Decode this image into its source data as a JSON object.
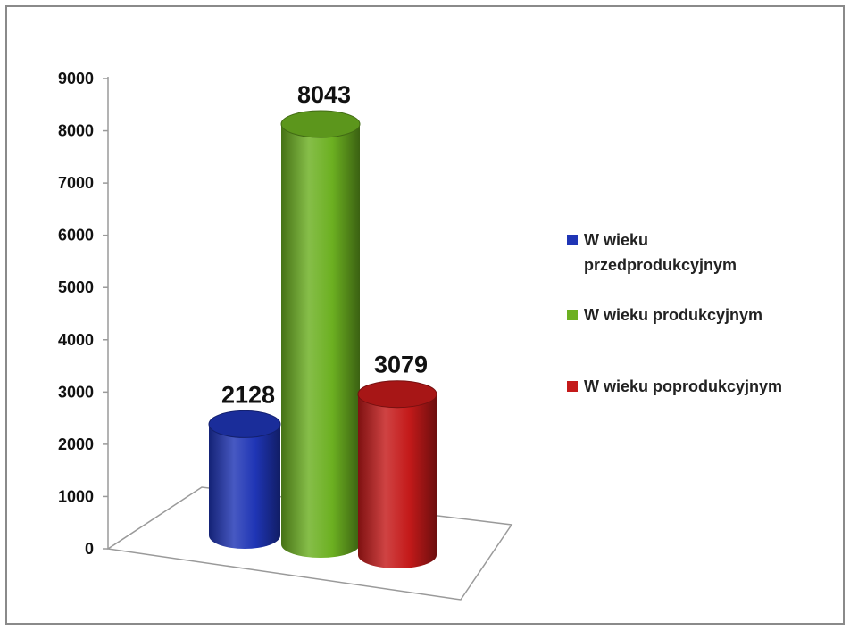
{
  "chart_data": {
    "type": "bar",
    "style": "3d-cylinder",
    "title": "",
    "xlabel": "",
    "ylabel": "",
    "ylim": [
      0,
      9000
    ],
    "y_ticks": [
      0,
      1000,
      2000,
      3000,
      4000,
      5000,
      6000,
      7000,
      8000,
      9000
    ],
    "grid": false,
    "legend_position": "right",
    "series": [
      {
        "name": "W wieku przedprodukcyjnym",
        "value": 2128,
        "color": "#1f35b5"
      },
      {
        "name": "W wieku produkcyjnym",
        "value": 8043,
        "color": "#6cb021"
      },
      {
        "name": "W wieku poprodukcyjnym",
        "value": 3079,
        "color": "#c41a1a"
      }
    ]
  }
}
